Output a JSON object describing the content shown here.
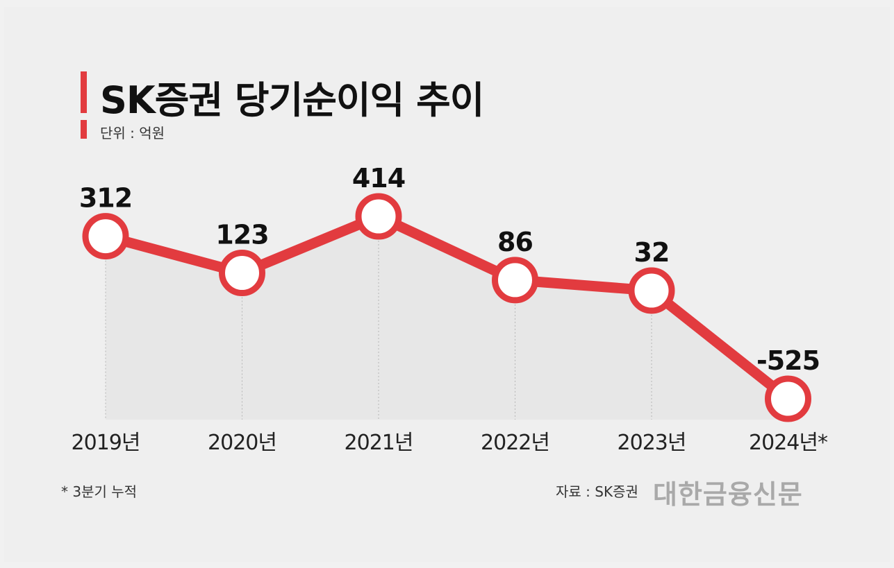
{
  "chart_data": {
    "type": "line",
    "title": "SK증권 당기순이익 추이",
    "unit_label": "단위 : 억원",
    "categories": [
      "2019년",
      "2020년",
      "2021년",
      "2022년",
      "2023년",
      "2024년*"
    ],
    "values": [
      312,
      123,
      414,
      86,
      32,
      -525
    ],
    "value_labels": [
      "312",
      "123",
      "414",
      "86",
      "32",
      "-525"
    ],
    "ylim": [
      -525,
      414
    ],
    "xlabel": "",
    "ylabel": "",
    "grid": false,
    "line_color": "#e23b3f"
  },
  "footnote": "* 3분기 누적",
  "source": "자료 : SK증권",
  "publisher": "대한금융신문"
}
